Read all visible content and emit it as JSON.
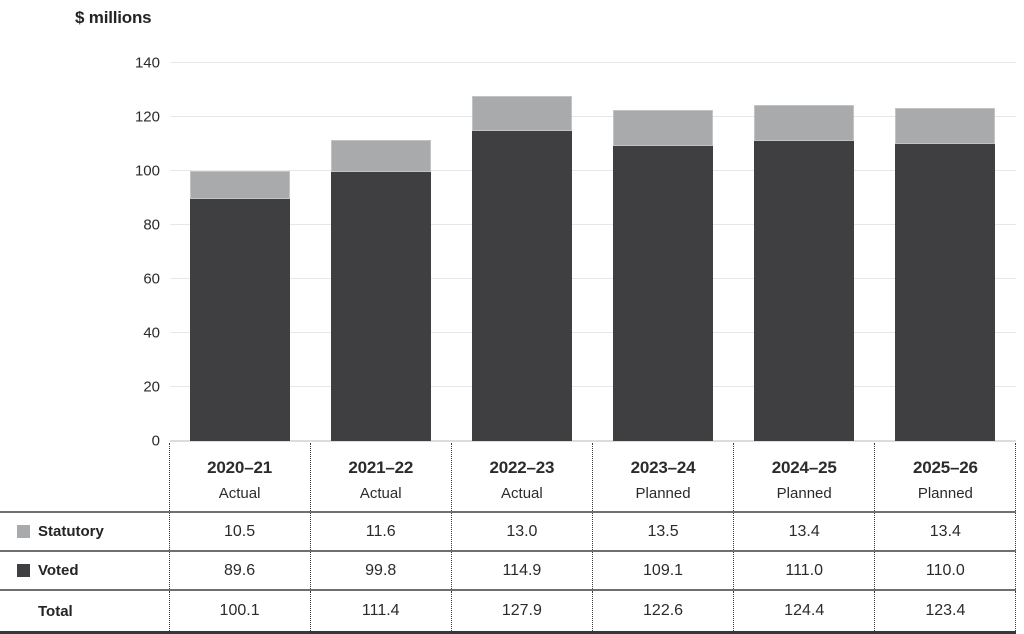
{
  "chart_data": {
    "type": "bar",
    "stacked": true,
    "title": "$ millions",
    "categories": [
      "2020–21",
      "2021–22",
      "2022–23",
      "2023–24",
      "2024–25",
      "2025–26"
    ],
    "category_sublabels": [
      "Actual",
      "Actual",
      "Actual",
      "Planned",
      "Planned",
      "Planned"
    ],
    "series": [
      {
        "name": "Statutory",
        "color": "#a8aaac",
        "values": [
          10.5,
          11.6,
          13.0,
          13.5,
          13.4,
          13.4
        ]
      },
      {
        "name": "Voted",
        "color": "#3f3f41",
        "values": [
          89.6,
          99.8,
          114.9,
          109.1,
          111.0,
          110.0
        ]
      }
    ],
    "totals": {
      "label": "Total",
      "values": [
        100.1,
        111.4,
        127.9,
        122.6,
        124.4,
        123.4
      ]
    },
    "ylim": [
      0,
      140
    ],
    "ytick_step": 20,
    "grid": true,
    "legend_position": "table-left-column",
    "colors": {
      "gridline": "#e7e7e7",
      "baseline": "#dcdcdc",
      "table_inner_border": "#6f6f6f",
      "table_bottom_border": "#373737",
      "column_separator": "#3c3c3c",
      "text": "#2b2b2b"
    }
  }
}
